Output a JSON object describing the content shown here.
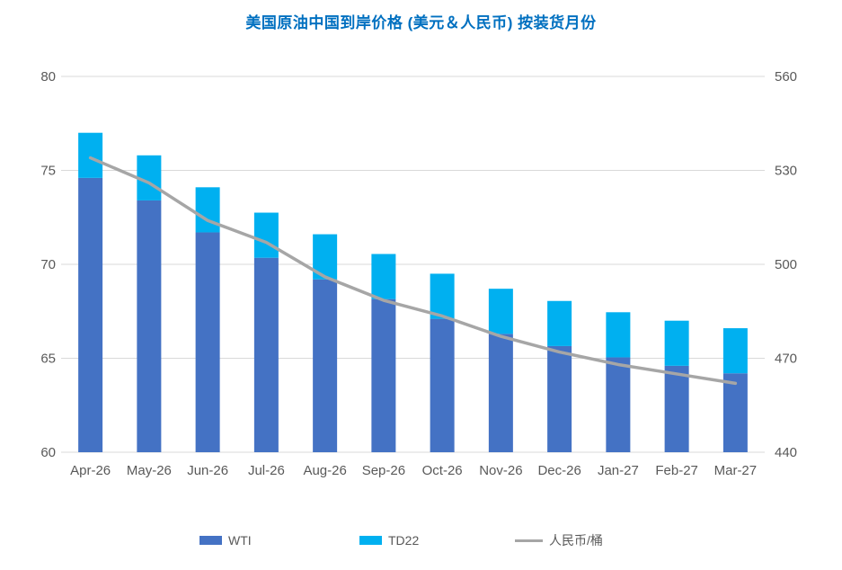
{
  "title": "美国原油中国到岸价格 (美元＆人民币) 按装货月份",
  "colors": {
    "wti": "#4472C4",
    "td22": "#00B0F0",
    "rmb_line": "#A6A6A6",
    "title": "#0070C0",
    "axis_text": "#595959",
    "gridline": "#D9D9D9"
  },
  "legend": {
    "wti_label": "WTI",
    "td22_label": "TD22",
    "rmb_label": "人民币/桶"
  },
  "chart_data": {
    "type": "bar",
    "subtype": "stacked-bars-with-secondary-axis-line",
    "title": "美国原油中国到岸价格 (美元＆人民币) 按装货月份",
    "categories": [
      "Apr-26",
      "May-26",
      "Jun-26",
      "Jul-26",
      "Aug-26",
      "Sep-26",
      "Oct-26",
      "Nov-26",
      "Dec-26",
      "Jan-27",
      "Feb-27",
      "Mar-27"
    ],
    "series": [
      {
        "name": "WTI",
        "type": "bar",
        "stack": true,
        "axis": "left",
        "values": [
          74.6,
          73.4,
          71.7,
          70.35,
          69.2,
          68.15,
          67.1,
          66.3,
          65.65,
          65.05,
          64.6,
          64.2
        ]
      },
      {
        "name": "TD22",
        "type": "bar",
        "stack": true,
        "axis": "left",
        "values": [
          2.4,
          2.4,
          2.4,
          2.4,
          2.4,
          2.4,
          2.4,
          2.4,
          2.4,
          2.4,
          2.4,
          2.4
        ]
      },
      {
        "name": "人民币/桶",
        "type": "line",
        "axis": "right",
        "values": [
          534,
          526,
          514,
          507,
          496,
          488.5,
          483.5,
          477,
          472,
          468,
          465,
          462
        ]
      }
    ],
    "stacked_totals": [
      77.0,
      75.8,
      74.1,
      72.75,
      71.6,
      70.55,
      69.5,
      68.7,
      68.05,
      67.45,
      67.0,
      66.6
    ],
    "left_axis": {
      "min": 60,
      "max": 80,
      "step": 5,
      "ticks": [
        60,
        65,
        70,
        75,
        80
      ]
    },
    "right_axis": {
      "min": 440,
      "max": 560,
      "step": 30,
      "ticks": [
        440,
        470,
        500,
        530,
        560
      ]
    },
    "grid": true,
    "legend_position": "bottom"
  }
}
